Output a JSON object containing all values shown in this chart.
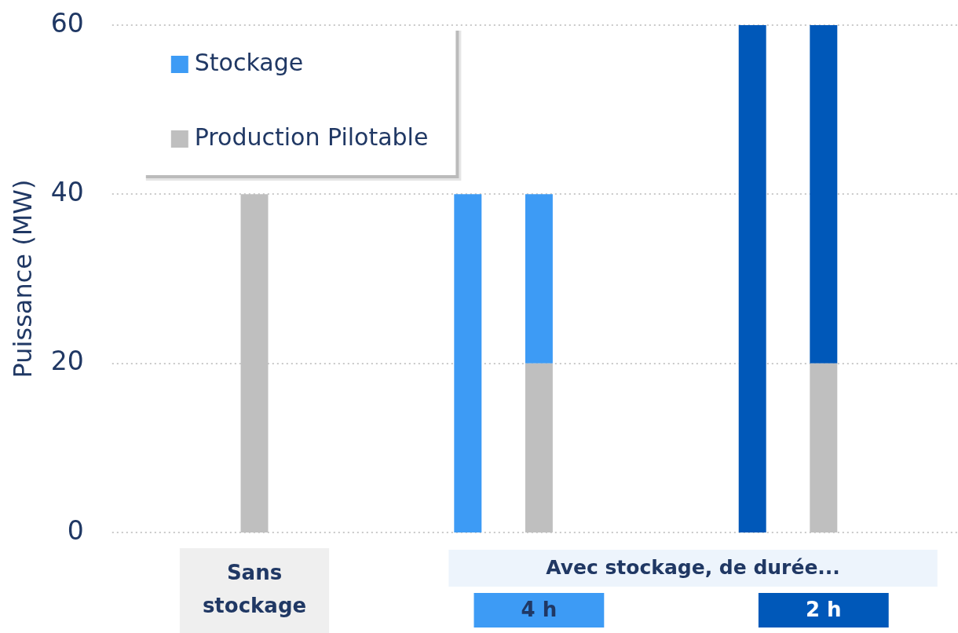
{
  "chart_data": {
    "type": "bar",
    "ylabel": "Puissance (MW)",
    "categories": [
      "Sans stockage",
      null,
      null,
      null,
      "4 h",
      null,
      null,
      null,
      "2 h"
    ],
    "series": [
      {
        "name": "Production Pilotable",
        "color": "#bfbfbf",
        "values": [
          40,
          null,
          null,
          null,
          20,
          null,
          null,
          null,
          20
        ]
      },
      {
        "name": "Stockage",
        "color": "#3d9bf5",
        "colors": [
          null,
          null,
          null,
          "#3d9bf5",
          "#3d9bf5",
          null,
          null,
          "#0058b9",
          "#0058b9"
        ],
        "values": [
          null,
          null,
          null,
          40,
          20,
          null,
          null,
          60,
          40
        ]
      }
    ],
    "stacked": true,
    "ylim": [
      0,
      60
    ],
    "yticks": [
      0,
      20,
      40,
      60
    ],
    "grid": "y",
    "legend": "top left",
    "annotations": [
      "Avec stockage, de durée..."
    ]
  }
}
